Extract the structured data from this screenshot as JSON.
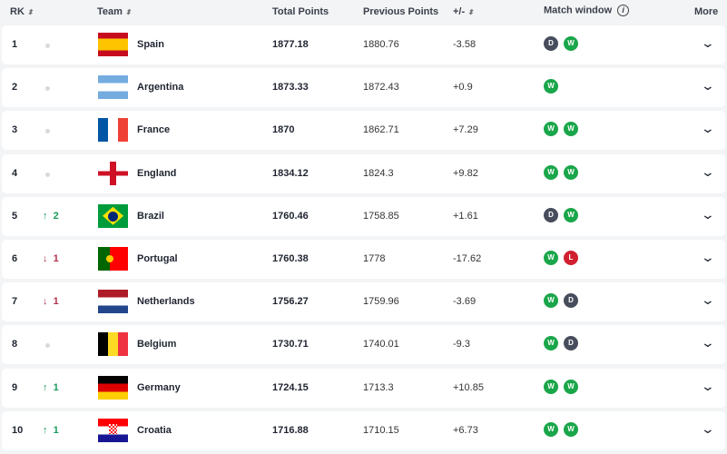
{
  "header": {
    "rank": "RK",
    "team": "Team",
    "total": "Total Points",
    "previous": "Previous Points",
    "diff": "+/-",
    "match_window": "Match window",
    "more": "More",
    "sort_icon": "⬍",
    "info_icon": "i"
  },
  "colors": {
    "win": "#1aa64a",
    "draw": "#474d5c",
    "loss": "#d0202f",
    "up": "#1a9b5b",
    "down": "#b3304d"
  },
  "rows": [
    {
      "rank": "1",
      "move": "",
      "dir": "none",
      "team": "Spain",
      "flag": "spain",
      "total": "1877.18",
      "prev": "1880.76",
      "diff": "-3.58",
      "window": [
        "D",
        "W"
      ]
    },
    {
      "rank": "2",
      "move": "",
      "dir": "none",
      "team": "Argentina",
      "flag": "argentina",
      "total": "1873.33",
      "prev": "1872.43",
      "diff": "+0.9",
      "window": [
        "W"
      ]
    },
    {
      "rank": "3",
      "move": "",
      "dir": "none",
      "team": "France",
      "flag": "france",
      "total": "1870",
      "prev": "1862.71",
      "diff": "+7.29",
      "window": [
        "W",
        "W"
      ]
    },
    {
      "rank": "4",
      "move": "",
      "dir": "none",
      "team": "England",
      "flag": "england",
      "total": "1834.12",
      "prev": "1824.3",
      "diff": "+9.82",
      "window": [
        "W",
        "W"
      ]
    },
    {
      "rank": "5",
      "move": "2",
      "dir": "up",
      "team": "Brazil",
      "flag": "brazil",
      "total": "1760.46",
      "prev": "1758.85",
      "diff": "+1.61",
      "window": [
        "D",
        "W"
      ]
    },
    {
      "rank": "6",
      "move": "1",
      "dir": "down",
      "team": "Portugal",
      "flag": "portugal",
      "total": "1760.38",
      "prev": "1778",
      "diff": "-17.62",
      "window": [
        "W",
        "L"
      ]
    },
    {
      "rank": "7",
      "move": "1",
      "dir": "down",
      "team": "Netherlands",
      "flag": "netherlands",
      "total": "1756.27",
      "prev": "1759.96",
      "diff": "-3.69",
      "window": [
        "W",
        "D"
      ]
    },
    {
      "rank": "8",
      "move": "",
      "dir": "none",
      "team": "Belgium",
      "flag": "belgium",
      "total": "1730.71",
      "prev": "1740.01",
      "diff": "-9.3",
      "window": [
        "W",
        "D"
      ]
    },
    {
      "rank": "9",
      "move": "1",
      "dir": "up",
      "team": "Germany",
      "flag": "germany",
      "total": "1724.15",
      "prev": "1713.3",
      "diff": "+10.85",
      "window": [
        "W",
        "W"
      ]
    },
    {
      "rank": "10",
      "move": "1",
      "dir": "up",
      "team": "Croatia",
      "flag": "croatia",
      "total": "1716.88",
      "prev": "1710.15",
      "diff": "+6.73",
      "window": [
        "W",
        "W"
      ]
    }
  ]
}
